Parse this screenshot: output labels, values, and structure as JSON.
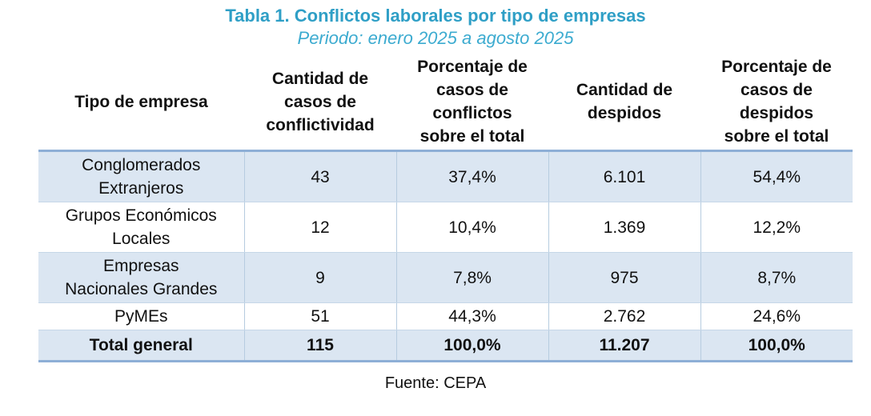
{
  "title": "Tabla 1. Conflictos laborales por tipo de empresas",
  "subtitle": "Periodo: enero 2025 a agosto 2025",
  "source": "Fuente: CEPA",
  "colors": {
    "title_text": "#2f9fc6",
    "subtitle_text": "#3cabd0",
    "shaded_row_background": "#dbe6f2",
    "thick_border": "#8eafd6",
    "thin_border": "#b6cce0"
  },
  "chart_data": {
    "type": "table",
    "title": "Tabla 1. Conflictos laborales por tipo de empresas",
    "subtitle": "Periodo: enero 2025 a agosto 2025",
    "source": "Fuente: CEPA",
    "columns": [
      "Tipo de empresa",
      "Cantidad de\ncasos de\nconflictividad",
      "Porcentaje de\ncasos de\nconflictos\nsobre el total",
      "Cantidad de\ndespidos",
      "Porcentaje de\ncasos de\ndespidos\nsobre el total"
    ],
    "rows": [
      [
        "Conglomerados\nExtranjeros",
        "43",
        "37,4%",
        "6.101",
        "54,4%"
      ],
      [
        "Grupos Económicos\nLocales",
        "12",
        "10,4%",
        "1.369",
        "12,2%"
      ],
      [
        "Empresas\nNacionales Grandes",
        "9",
        "7,8%",
        "975",
        "8,7%"
      ],
      [
        "PyMEs",
        "51",
        "44,3%",
        "2.762",
        "24,6%"
      ]
    ],
    "total_row": [
      "Total general",
      "115",
      "100,0%",
      "11.207",
      "100,0%"
    ],
    "values_numeric": {
      "casos_conflictividad": [
        43,
        12,
        9,
        51
      ],
      "porcentaje_conflictos": [
        37.4,
        10.4,
        7.8,
        44.3
      ],
      "cantidad_despidos": [
        6101,
        1369,
        975,
        2762
      ],
      "porcentaje_despidos": [
        54.4,
        12.2,
        8.7,
        24.6
      ],
      "total_casos": 115,
      "total_despidos": 11207
    }
  }
}
